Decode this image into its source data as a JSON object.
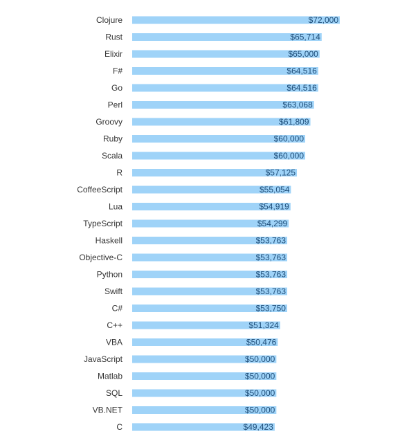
{
  "chart_data": {
    "type": "bar",
    "orientation": "horizontal",
    "title": "",
    "xlabel": "",
    "ylabel": "",
    "xlim": [
      0,
      72000
    ],
    "grid": false,
    "legend": "none",
    "bar_color": "#9fd3f8",
    "value_label_color": "#1f4e79",
    "category_label_color": "#333333",
    "categories": [
      "Clojure",
      "Rust",
      "Elixir",
      "F#",
      "Go",
      "Perl",
      "Groovy",
      "Ruby",
      "Scala",
      "R",
      "CoffeeScript",
      "Lua",
      "TypeScript",
      "Haskell",
      "Objective-C",
      "Python",
      "Swift",
      "C#",
      "C++",
      "VBA",
      "JavaScript",
      "Matlab",
      "SQL",
      "VB.NET",
      "C"
    ],
    "values": [
      72000,
      65714,
      65000,
      64516,
      64516,
      63068,
      61809,
      60000,
      60000,
      57125,
      55054,
      54919,
      54299,
      53763,
      53763,
      53763,
      53763,
      53750,
      51324,
      50476,
      50000,
      50000,
      50000,
      50000,
      49423
    ],
    "value_labels": [
      "$72,000",
      "$65,714",
      "$65,000",
      "$64,516",
      "$64,516",
      "$63,068",
      "$61,809",
      "$60,000",
      "$60,000",
      "$57,125",
      "$55,054",
      "$54,919",
      "$54,299",
      "$53,763",
      "$53,763",
      "$53,763",
      "$53,763",
      "$53,750",
      "$51,324",
      "$50,476",
      "$50,000",
      "$50,000",
      "$50,000",
      "$50,000",
      "$49,423"
    ]
  }
}
